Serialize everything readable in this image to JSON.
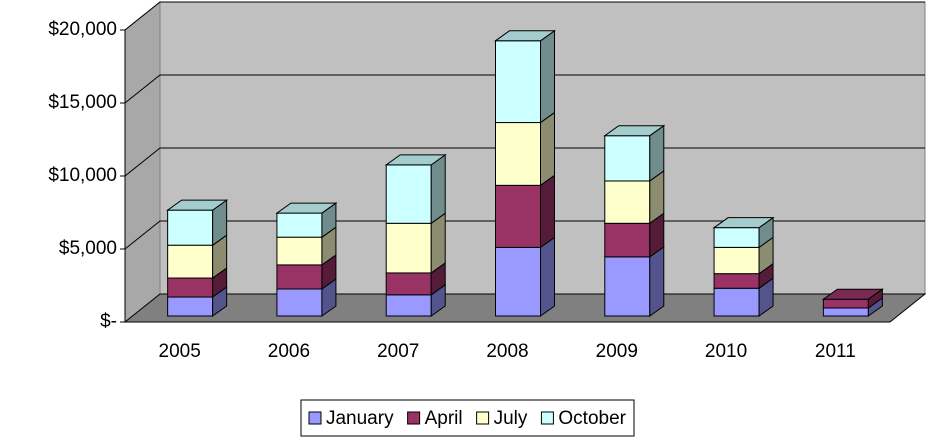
{
  "chart_data": {
    "type": "bar3d-stacked",
    "categories": [
      "2005",
      "2006",
      "2007",
      "2008",
      "2009",
      "2010",
      "2011"
    ],
    "series": [
      {
        "name": "January",
        "color": "#9999ff",
        "values": [
          1300,
          1850,
          1450,
          4700,
          4050,
          1900,
          550
        ]
      },
      {
        "name": "April",
        "color": "#993366",
        "values": [
          1300,
          1650,
          1500,
          4250,
          2300,
          1000,
          600
        ]
      },
      {
        "name": "July",
        "color": "#ffffcc",
        "values": [
          2250,
          1900,
          3400,
          4300,
          2900,
          1800,
          null
        ]
      },
      {
        "name": "October",
        "color": "#ccffff",
        "values": [
          2400,
          1650,
          4000,
          5600,
          3100,
          1350,
          null
        ]
      }
    ],
    "ylim": [
      0,
      20000
    ],
    "yticks": [
      {
        "value": 0,
        "label": "$-"
      },
      {
        "value": 5000,
        "label": "$5,000"
      },
      {
        "value": 10000,
        "label": "$10,000"
      },
      {
        "value": 15000,
        "label": "$15,000"
      },
      {
        "value": 20000,
        "label": "$20,000"
      }
    ],
    "grid": true,
    "legend": "bottom"
  }
}
